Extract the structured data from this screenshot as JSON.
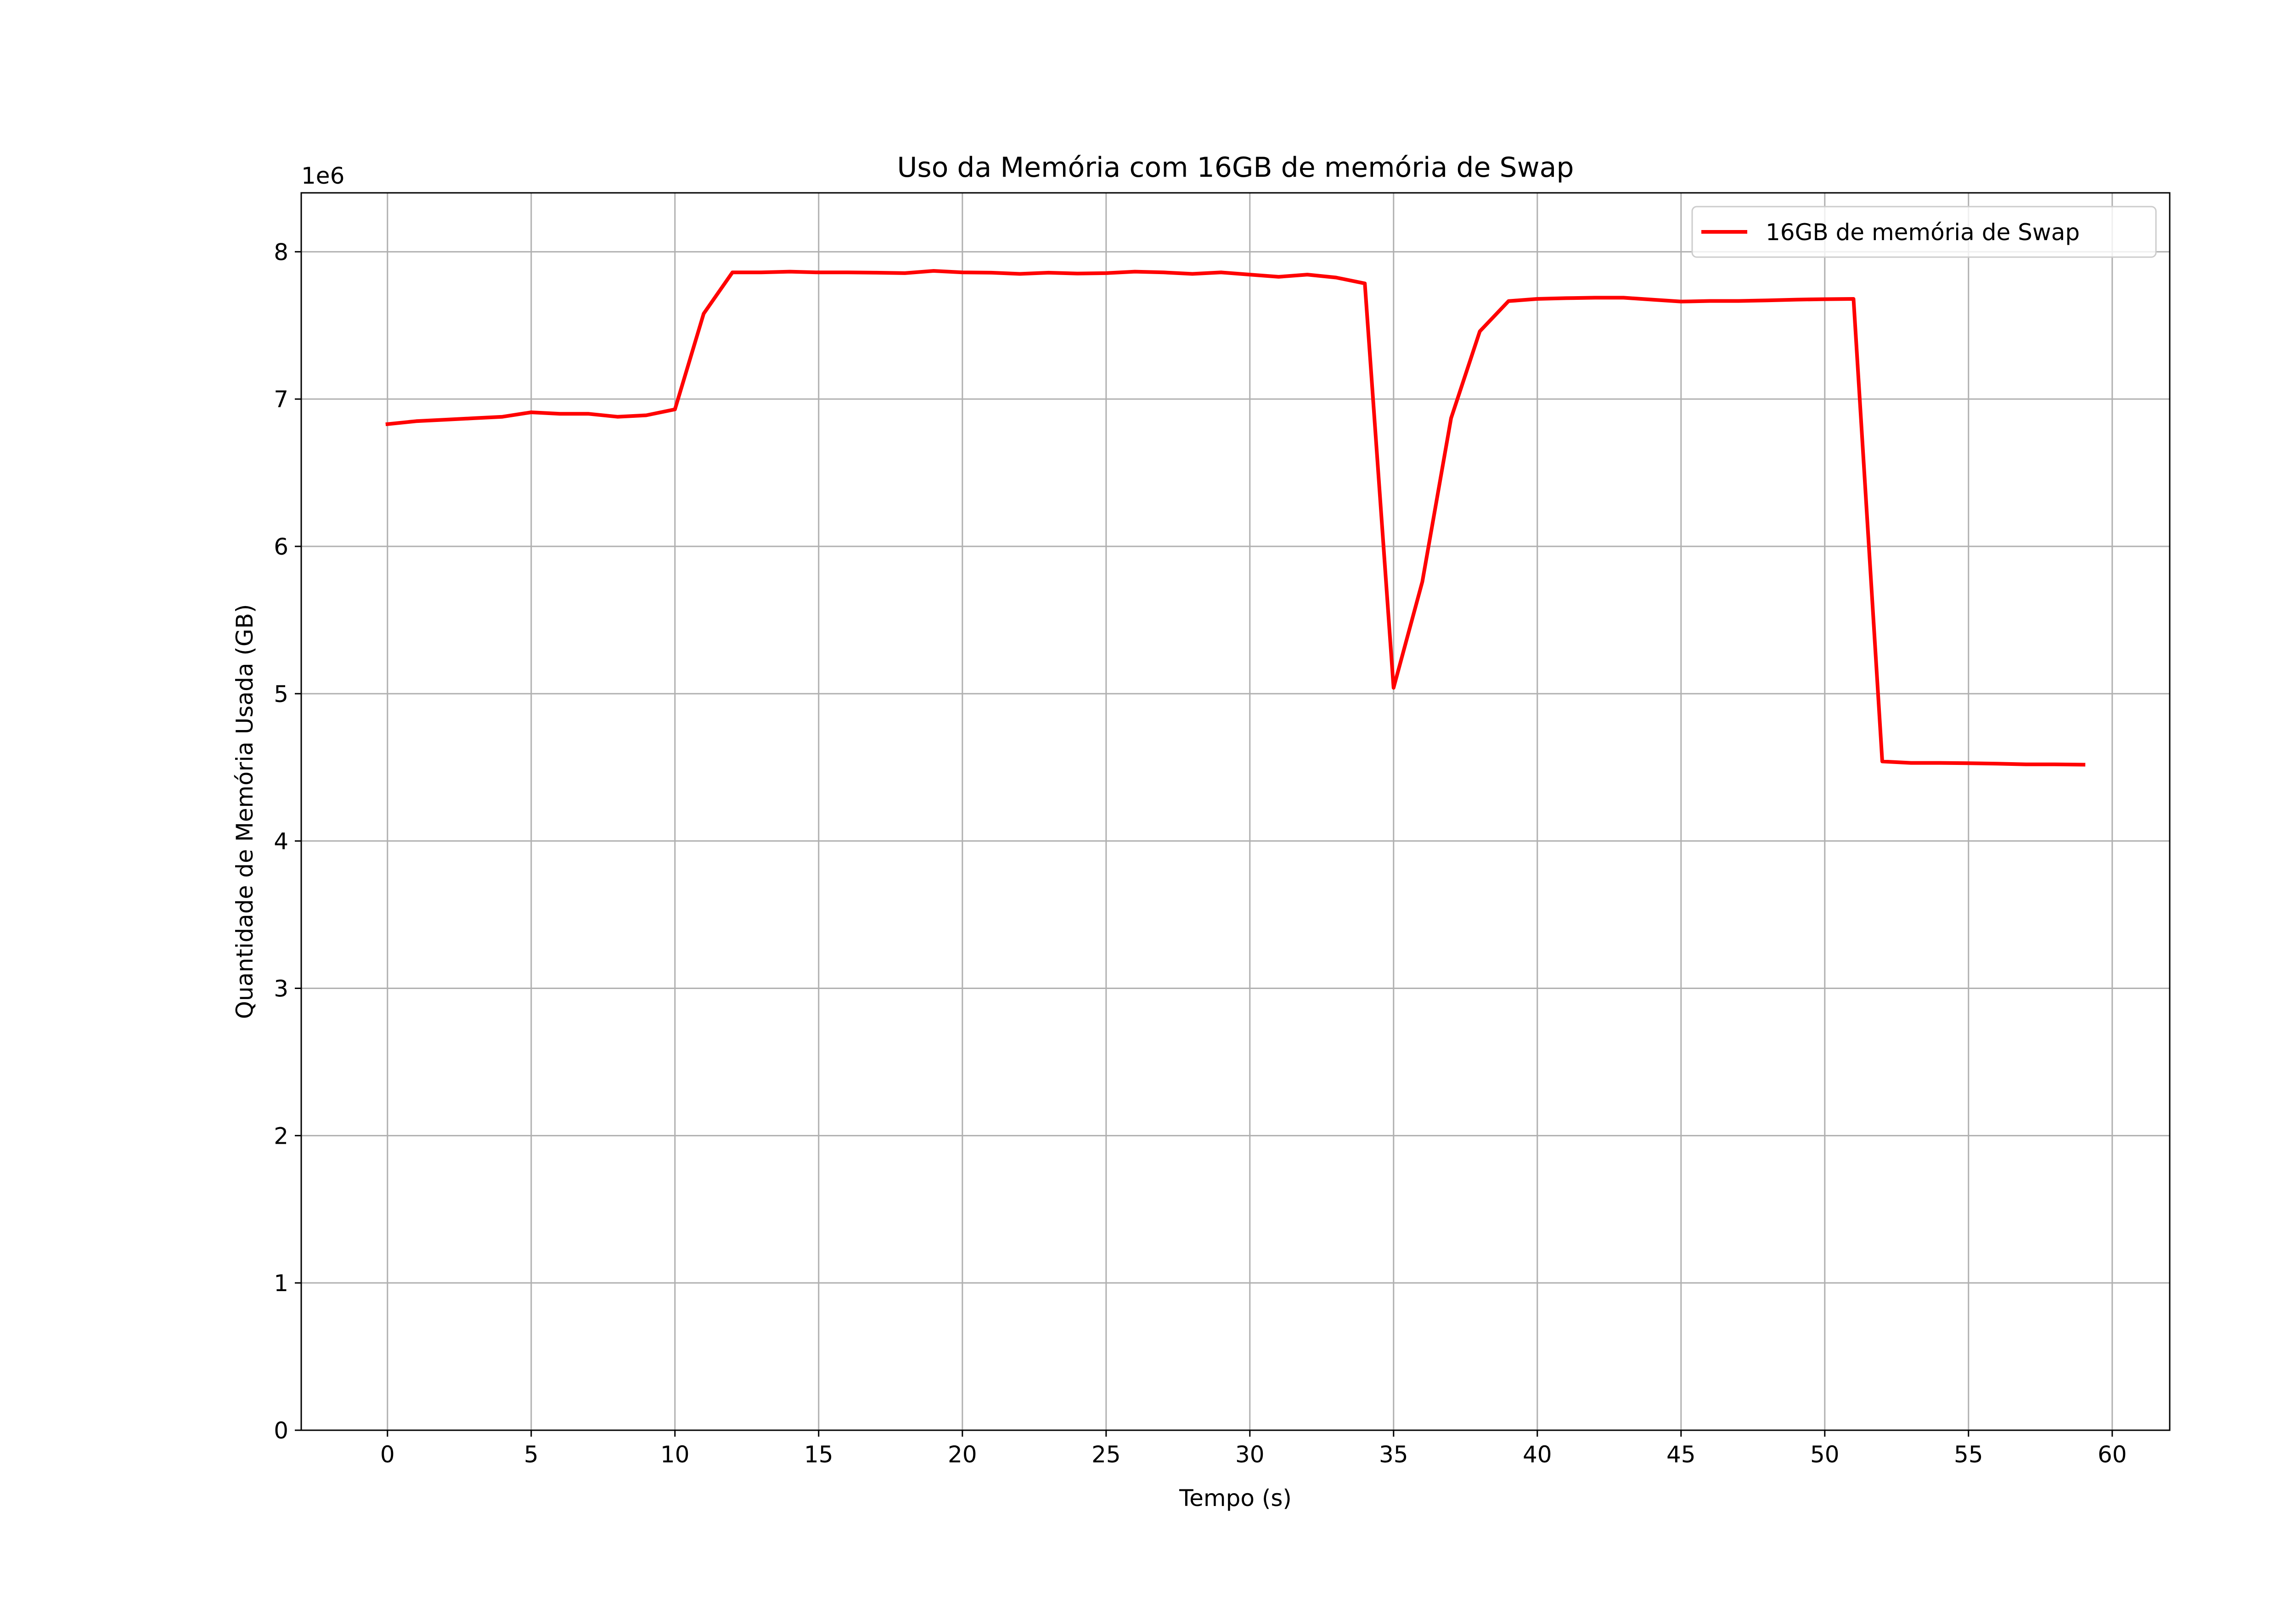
{
  "chart_data": {
    "type": "line",
    "title": "Uso da Memória com 16GB de memória de Swap",
    "xlabel": "Tempo (s)",
    "ylabel": "Quantidade de Memória Usada (GB)",
    "y_offset_text": "1e6",
    "xlim": [
      -3,
      62
    ],
    "ylim": [
      0,
      8400000
    ],
    "x_ticks": [
      0,
      5,
      10,
      15,
      20,
      25,
      30,
      35,
      40,
      45,
      50,
      55,
      60
    ],
    "y_ticks": [
      0,
      1000000,
      2000000,
      3000000,
      4000000,
      5000000,
      6000000,
      7000000,
      8000000
    ],
    "x_tick_labels": [
      "0",
      "5",
      "10",
      "15",
      "20",
      "25",
      "30",
      "35",
      "40",
      "45",
      "50",
      "55",
      "60"
    ],
    "y_tick_labels": [
      "0",
      "1",
      "2",
      "3",
      "4",
      "5",
      "6",
      "7",
      "8"
    ],
    "grid": true,
    "legend_position": "top-right",
    "series": [
      {
        "name": "16GB de memória de Swap",
        "color": "#ff0000",
        "x": [
          0,
          1,
          2,
          3,
          4,
          5,
          6,
          7,
          8,
          9,
          10,
          11,
          12,
          13,
          14,
          15,
          16,
          17,
          18,
          19,
          20,
          21,
          22,
          23,
          24,
          25,
          26,
          27,
          28,
          29,
          30,
          31,
          32,
          33,
          34,
          35,
          36,
          37,
          38,
          39,
          40,
          41,
          42,
          43,
          44,
          45,
          46,
          47,
          48,
          49,
          50,
          51,
          52,
          53,
          54,
          55,
          56,
          57,
          58,
          59
        ],
        "y": [
          6830000,
          6850000,
          6860000,
          6870000,
          6880000,
          6910000,
          6900000,
          6900000,
          6880000,
          6890000,
          6930000,
          7580000,
          7860000,
          7860000,
          7865000,
          7860000,
          7860000,
          7858000,
          7855000,
          7870000,
          7860000,
          7858000,
          7850000,
          7858000,
          7852000,
          7855000,
          7865000,
          7860000,
          7850000,
          7860000,
          7845000,
          7830000,
          7845000,
          7825000,
          7785000,
          5040000,
          5760000,
          6870000,
          7460000,
          7665000,
          7680000,
          7685000,
          7688000,
          7688000,
          7675000,
          7662000,
          7666000,
          7666000,
          7670000,
          7675000,
          7678000,
          7680000,
          4540000,
          4530000,
          4530000,
          4528000,
          4525000,
          4520000,
          4520000,
          4518000
        ]
      }
    ]
  }
}
